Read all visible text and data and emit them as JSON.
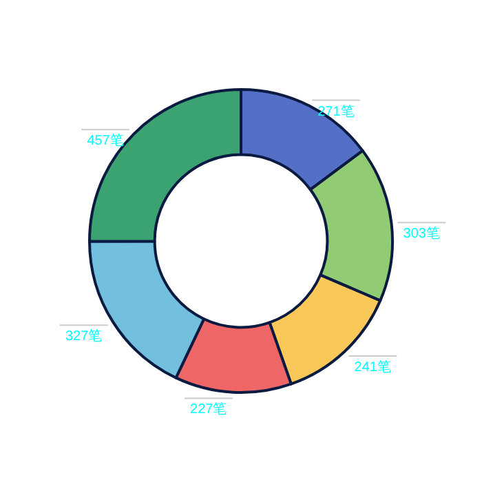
{
  "chart_data": {
    "type": "donut",
    "categories": [
      null,
      null,
      null,
      null,
      null,
      null
    ],
    "values": [
      271,
      303,
      241,
      227,
      327,
      457
    ],
    "colors": [
      "#5470c6",
      "#91cc75",
      "#fac858",
      "#ee6666",
      "#73c0de",
      "#3ba272"
    ],
    "value_labels": [
      "271笔",
      "303笔",
      "241笔",
      "227笔",
      "327笔",
      "457笔"
    ]
  }
}
